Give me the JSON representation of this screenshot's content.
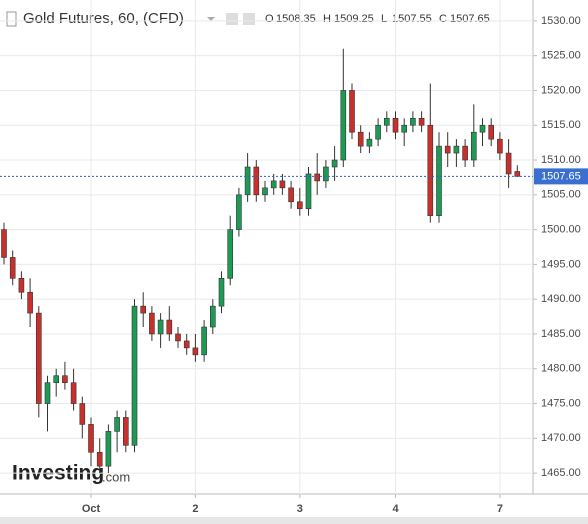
{
  "chart_data": {
    "type": "candlestick",
    "title": "Gold Futures, 60, (CFD)",
    "ohlc_labels": [
      "O",
      "H",
      "L",
      "C"
    ],
    "watermark": [
      "Investing",
      ".com"
    ],
    "categories": [
      null,
      null,
      null,
      null,
      null,
      null,
      null,
      null,
      null,
      null,
      "Oct",
      null,
      null,
      null,
      null,
      null,
      null,
      null,
      null,
      null,
      null,
      null,
      "2",
      null,
      null,
      null,
      null,
      null,
      null,
      null,
      null,
      null,
      null,
      null,
      "3",
      null,
      null,
      null,
      null,
      null,
      null,
      null,
      null,
      null,
      null,
      "4",
      null,
      null,
      null,
      null,
      null,
      null,
      null,
      null,
      null,
      null,
      null,
      "7",
      null,
      null
    ],
    "open": [
      1500,
      1496,
      1493,
      1491,
      1488,
      1475,
      1478,
      1479,
      1478,
      1475,
      1472,
      1468,
      1466,
      1471,
      1473,
      1469,
      1489,
      1488,
      1485,
      1487,
      1485,
      1484,
      1483,
      1482,
      1486,
      1489,
      1493,
      1500,
      1505,
      1509,
      1505,
      1506,
      1507,
      1506,
      1504,
      1503,
      1508,
      1507,
      1509,
      1510,
      1520,
      1514,
      1512,
      1513,
      1515,
      1516,
      1514,
      1515,
      1516,
      1515,
      1502,
      1512,
      1511,
      1512,
      1510,
      1514,
      1515,
      1513,
      1511,
      1508.35
    ],
    "high": [
      1501,
      1497,
      1494,
      1493,
      1489,
      1479,
      1480,
      1481,
      1480,
      1476,
      1473,
      1470,
      1472,
      1474,
      1474,
      1490,
      1491,
      1489,
      1488,
      1489,
      1486,
      1485,
      1485,
      1487,
      1490,
      1494,
      1502,
      1506,
      1511,
      1510,
      1507,
      1508,
      1508,
      1507,
      1506,
      1509,
      1511,
      1510,
      1512,
      1526,
      1521,
      1515,
      1514,
      1516,
      1517,
      1517,
      1516,
      1517,
      1517,
      1521,
      1514,
      1514,
      1513,
      1513,
      1518,
      1516,
      1516,
      1514,
      1513,
      1509.25
    ],
    "low": [
      1495,
      1492,
      1490,
      1486,
      1473,
      1471,
      1476,
      1477,
      1474,
      1470,
      1466,
      1465,
      1465,
      1468,
      1468,
      1468,
      1486,
      1484,
      1483,
      1484,
      1483,
      1482,
      1481,
      1481,
      1485,
      1488,
      1492,
      1499,
      1504,
      1504,
      1504,
      1505,
      1505,
      1503,
      1502,
      1502,
      1505,
      1506,
      1507,
      1509,
      1513,
      1511,
      1511,
      1512,
      1514,
      1513,
      1512,
      1514,
      1514,
      1501,
      1501,
      1509,
      1509,
      1509,
      1509,
      1512,
      1512,
      1510,
      1506,
      1507.55
    ],
    "close": [
      1496,
      1493,
      1491,
      1488,
      1475,
      1478,
      1479,
      1478,
      1475,
      1472,
      1468,
      1466,
      1471,
      1473,
      1469,
      1489,
      1488,
      1485,
      1487,
      1485,
      1484,
      1483,
      1482,
      1486,
      1489,
      1493,
      1500,
      1505,
      1509,
      1505,
      1506,
      1507,
      1506,
      1504,
      1503,
      1508,
      1507,
      1509,
      1510,
      1520,
      1514,
      1512,
      1513,
      1515,
      1516,
      1514,
      1515,
      1516,
      1515,
      1502,
      1512,
      1511,
      1512,
      1510,
      1514,
      1515,
      1513,
      1511,
      1508,
      1507.65
    ],
    "up_color": "#1e9a55",
    "down_color": "#c8302c",
    "ylim": [
      1462,
      1533
    ],
    "yticks": [
      {
        "value": 1465,
        "label": "1465.00"
      },
      {
        "value": 1470,
        "label": "1470.00"
      },
      {
        "value": 1475,
        "label": "1475.00"
      },
      {
        "value": 1480,
        "label": "1480.00"
      },
      {
        "value": 1485,
        "label": "1485.00"
      },
      {
        "value": 1490,
        "label": "1490.00"
      },
      {
        "value": 1495,
        "label": "1495.00"
      },
      {
        "value": 1500,
        "label": "1500.00"
      },
      {
        "value": 1505,
        "label": "1505.00"
      },
      {
        "value": 1510,
        "label": "1510.00"
      },
      {
        "value": 1515,
        "label": "1515.00"
      },
      {
        "value": 1520,
        "label": "1520.00"
      },
      {
        "value": 1525,
        "label": "1525.00"
      },
      {
        "value": 1530,
        "label": "1530.00"
      }
    ],
    "grid": true
  }
}
